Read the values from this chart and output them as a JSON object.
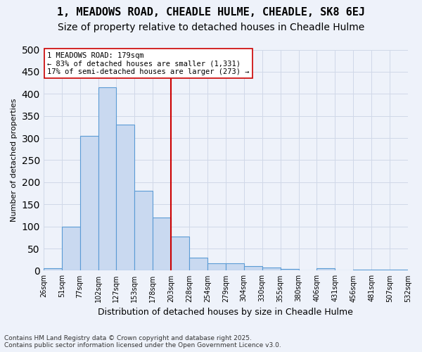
{
  "title_line1": "1, MEADOWS ROAD, CHEADLE HULME, CHEADLE, SK8 6EJ",
  "title_line2": "Size of property relative to detached houses in Cheadle Hulme",
  "xlabel": "Distribution of detached houses by size in Cheadle Hulme",
  "ylabel": "Number of detached properties",
  "bin_labels": [
    "26sqm",
    "51sqm",
    "77sqm",
    "102sqm",
    "127sqm",
    "153sqm",
    "178sqm",
    "203sqm",
    "228sqm",
    "254sqm",
    "279sqm",
    "304sqm",
    "330sqm",
    "355sqm",
    "380sqm",
    "406sqm",
    "431sqm",
    "456sqm",
    "481sqm",
    "507sqm",
    "532sqm"
  ],
  "bar_heights": [
    5,
    100,
    305,
    415,
    330,
    180,
    120,
    77,
    30,
    17,
    16,
    10,
    7,
    4,
    0,
    5,
    0,
    3,
    2,
    2
  ],
  "bar_color": "#c9d9f0",
  "bar_edge_color": "#5b9bd5",
  "vline_color": "#cc0000",
  "vline_pos": 6.5,
  "annotation_title": "1 MEADOWS ROAD: 179sqm",
  "annotation_line1": "← 83% of detached houses are smaller (1,331)",
  "annotation_line2": "17% of semi-detached houses are larger (273) →",
  "annotation_box_color": "#ffffff",
  "annotation_box_edge_color": "#cc0000",
  "footer_line1": "Contains HM Land Registry data © Crown copyright and database right 2025.",
  "footer_line2": "Contains public sector information licensed under the Open Government Licence v3.0.",
  "ylim": [
    0,
    500
  ],
  "yticks": [
    0,
    50,
    100,
    150,
    200,
    250,
    300,
    350,
    400,
    450,
    500
  ],
  "grid_color": "#d0d8e8",
  "bg_color": "#eef2fa",
  "title_fontsize": 11,
  "subtitle_fontsize": 10
}
